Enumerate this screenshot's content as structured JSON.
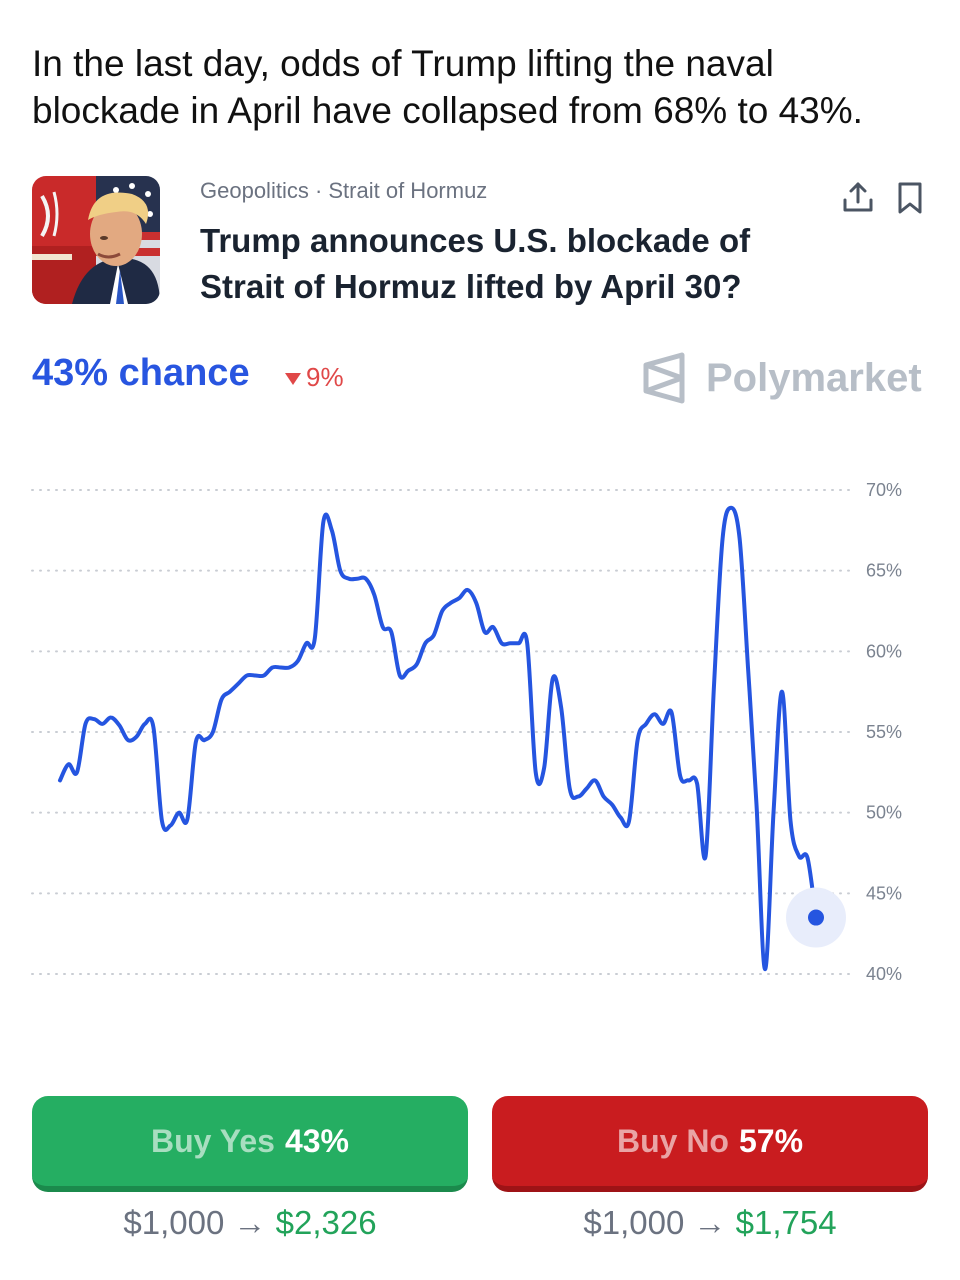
{
  "headline": "In the last day, odds of Trump lifting the naval blockade in April have collapsed from 68% to 43%.",
  "market": {
    "category": "Geopolitics · Strait of Hormuz",
    "title": "Trump announces U.S. blockade of Strait of Hormuz lifted by April 30?",
    "chance_text": "43% chance",
    "delta_text": "9%",
    "delta_direction": "down",
    "brand": "Polymarket"
  },
  "icons": {
    "share": "share-icon",
    "bookmark": "bookmark-icon",
    "delta": "down-triangle-icon",
    "brand": "polymarket-logo-icon"
  },
  "colors": {
    "line": "#2555e0",
    "accent": "#2855e0",
    "yes": "#25ae62",
    "no": "#c91c1f",
    "down": "#e04848",
    "payout_gain": "#22a35a"
  },
  "chart_data": {
    "type": "line",
    "title": "",
    "xlabel": "",
    "ylabel": "",
    "ylim": [
      40,
      70
    ],
    "y_ticks": [
      70,
      65,
      60,
      55,
      50,
      45,
      40
    ],
    "y_tick_labels": [
      "70%",
      "65%",
      "60%",
      "55%",
      "50%",
      "45%",
      "40%"
    ],
    "grid": true,
    "series": [
      {
        "values": [
          52,
          53,
          52.5,
          55.5,
          55.8,
          55.5,
          55.9,
          55.4,
          54.5,
          54.7,
          55.5,
          55.3,
          49.5,
          49.2,
          50,
          49.6,
          54.4,
          54.5,
          55,
          57,
          57.5,
          58,
          58.5,
          58.5,
          58.5,
          59,
          59,
          59,
          59.4,
          60.5,
          60.8,
          68,
          67.5,
          65,
          64.5,
          64.5,
          64.5,
          63.5,
          61.5,
          61.2,
          58.5,
          58.8,
          59.2,
          60.5,
          61,
          62.5,
          63,
          63.3,
          63.8,
          63,
          61.2,
          61.5,
          60.5,
          60.5,
          60.5,
          60.5,
          52.5,
          52.8,
          58.3,
          56.5,
          51.5,
          51,
          51.5,
          52,
          51,
          50.5,
          49.7,
          49.5,
          54.5,
          55.5,
          56.1,
          55.5,
          56.2,
          52.3,
          52,
          51.8,
          47.3,
          58,
          67,
          68.9,
          67,
          59,
          50.5,
          40.3,
          50,
          57.5,
          49.5,
          47.3,
          47.2,
          43.5
        ]
      }
    ],
    "end_value": 43.5
  },
  "buttons": {
    "yes_label": "Buy Yes",
    "yes_value": "43%",
    "no_label": "Buy No",
    "no_value": "57%"
  },
  "payouts": {
    "yes_from": "$1,000",
    "yes_to": "$2,326",
    "no_from": "$1,000",
    "no_to": "$1,754",
    "arrow": "→"
  }
}
